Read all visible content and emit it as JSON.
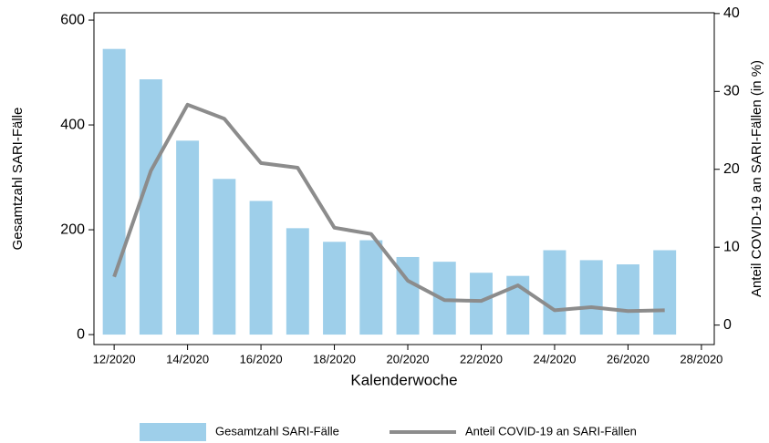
{
  "chart_data": {
    "type": "bar-line",
    "x_label": "Kalenderwoche",
    "y_label": "Gesamtzahl SARI-Fälle",
    "y2_label": "Anteil COVID-19 an SARI-Fällen (in %)",
    "x": [
      12,
      13,
      14,
      15,
      16,
      17,
      18,
      19,
      20,
      21,
      22,
      23,
      24,
      25,
      26,
      27
    ],
    "xlim": [
      11.45,
      28.35
    ],
    "xticks": [
      {
        "value": 12,
        "label": "12/2020"
      },
      {
        "value": 14,
        "label": "14/2020"
      },
      {
        "value": 16,
        "label": "16/2020"
      },
      {
        "value": 18,
        "label": "18/2020"
      },
      {
        "value": 20,
        "label": "20/2020"
      },
      {
        "value": 22,
        "label": "22/2020"
      },
      {
        "value": 24,
        "label": "24/2020"
      },
      {
        "value": 26,
        "label": "26/2020"
      },
      {
        "value": 28,
        "label": "28/2020"
      }
    ],
    "ylim": [
      -19,
      614
    ],
    "yticks": [
      0,
      200,
      400,
      600
    ],
    "y2lim": [
      -2.5,
      40.1
    ],
    "y2ticks": [
      0,
      10,
      20,
      30,
      40
    ],
    "series": [
      {
        "name": "Gesamtzahl SARI-Fälle",
        "type": "bar",
        "color": "#9ecfea",
        "values": [
          545,
          487,
          370,
          297,
          255,
          203,
          177,
          180,
          148,
          139,
          118,
          112,
          161,
          142,
          134,
          161
        ]
      },
      {
        "name": "Anteil COVID-19 an SARI-Fällen",
        "type": "line",
        "axis": "y2",
        "color": "#8c8c8c",
        "values": [
          6.2,
          19.8,
          28.3,
          26.5,
          20.8,
          20.2,
          12.5,
          11.7,
          5.7,
          3.2,
          3.1,
          5.1,
          1.9,
          2.3,
          1.8,
          1.9
        ]
      }
    ]
  }
}
